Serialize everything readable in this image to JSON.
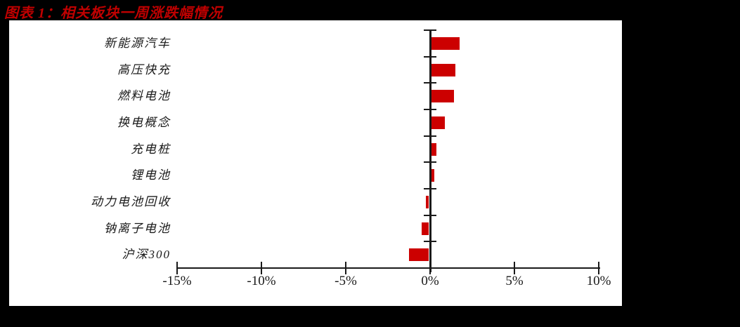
{
  "page": {
    "background": "#000000",
    "panel_background": "#FFFFFF"
  },
  "header": {
    "title": "图表 1：相关板块一周涨跌幅情况",
    "title_color": "#C00000"
  },
  "chart_data": {
    "type": "bar",
    "orientation": "horizontal",
    "title": "相关板块一周涨跌幅情况",
    "categories": [
      "新能源汽车",
      "高压快充",
      "燃料电池",
      "换电概念",
      "充电桩",
      "锂电池",
      "动力电池回收",
      "钠离子电池",
      "沪深300"
    ],
    "values": [
      1.7,
      1.45,
      1.35,
      0.8,
      0.3,
      0.2,
      -0.2,
      -0.45,
      -1.2
    ],
    "unit": "%",
    "xlim": [
      -15,
      10
    ],
    "xticks": [
      -15,
      -10,
      -5,
      0,
      5,
      10
    ],
    "xtick_labels": [
      "-15%",
      "-10%",
      "-5%",
      "0%",
      "5%",
      "10%"
    ],
    "grid": false,
    "legend": null,
    "bar_color": "#CC0000",
    "axis_color": "#1A1A1A",
    "label_color": "#1A1A1A"
  }
}
